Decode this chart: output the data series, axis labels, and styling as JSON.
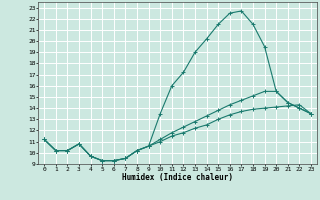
{
  "title": "",
  "xlabel": "Humidex (Indice chaleur)",
  "bg_color": "#cce8e0",
  "grid_color": "#ffffff",
  "line_color": "#1a7a6e",
  "xlim": [
    -0.5,
    23.5
  ],
  "ylim": [
    9,
    23.5
  ],
  "xticks": [
    0,
    1,
    2,
    3,
    4,
    5,
    6,
    7,
    8,
    9,
    10,
    11,
    12,
    13,
    14,
    15,
    16,
    17,
    18,
    19,
    20,
    21,
    22,
    23
  ],
  "yticks": [
    9,
    10,
    11,
    12,
    13,
    14,
    15,
    16,
    17,
    18,
    19,
    20,
    21,
    22,
    23
  ],
  "line1_x": [
    0,
    1,
    2,
    3,
    4,
    5,
    6,
    7,
    8,
    9,
    10,
    11,
    12,
    13,
    14,
    15,
    16,
    17,
    18,
    19,
    20,
    21,
    22,
    23
  ],
  "line1_y": [
    11.2,
    10.2,
    10.2,
    10.8,
    9.7,
    9.3,
    9.3,
    9.5,
    10.2,
    10.6,
    13.5,
    16.0,
    17.2,
    19.0,
    20.2,
    21.5,
    22.5,
    22.7,
    21.5,
    19.5,
    15.5,
    14.5,
    14.0,
    13.5
  ],
  "line2_x": [
    0,
    1,
    2,
    3,
    4,
    5,
    6,
    7,
    8,
    9,
    10,
    11,
    12,
    13,
    14,
    15,
    16,
    17,
    18,
    19,
    20,
    21,
    22,
    23
  ],
  "line2_y": [
    11.2,
    10.2,
    10.2,
    10.8,
    9.7,
    9.3,
    9.3,
    9.5,
    10.2,
    10.6,
    11.0,
    11.5,
    11.8,
    12.2,
    12.5,
    13.0,
    13.4,
    13.7,
    13.9,
    14.0,
    14.1,
    14.2,
    14.3,
    13.5
  ],
  "line3_x": [
    0,
    1,
    2,
    3,
    4,
    5,
    6,
    7,
    8,
    9,
    10,
    11,
    12,
    13,
    14,
    15,
    16,
    17,
    18,
    19,
    20,
    21,
    22,
    23
  ],
  "line3_y": [
    11.2,
    10.2,
    10.2,
    10.8,
    9.7,
    9.3,
    9.3,
    9.5,
    10.2,
    10.6,
    11.2,
    11.8,
    12.3,
    12.8,
    13.3,
    13.8,
    14.3,
    14.7,
    15.1,
    15.5,
    15.5,
    14.5,
    14.0,
    13.5
  ]
}
